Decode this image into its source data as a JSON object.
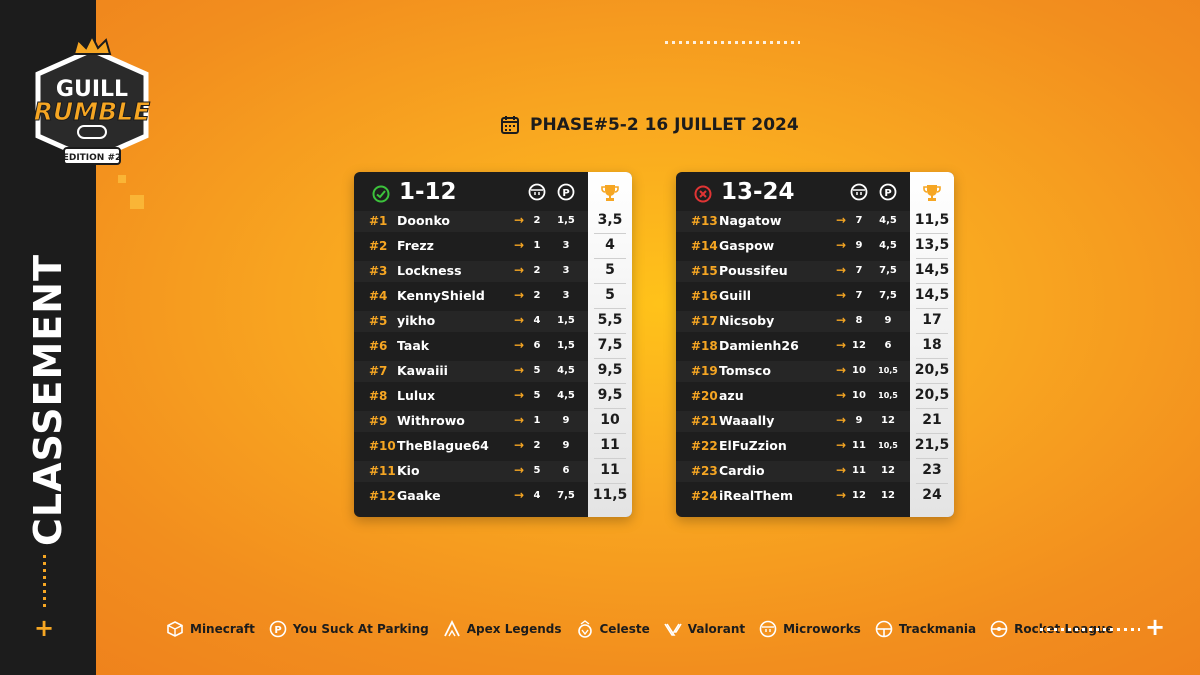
{
  "brand": {
    "line1": "GUILL",
    "line2": "RUMBLE",
    "edition": "EDITION #2"
  },
  "sidebar": {
    "title": "CLASSEMENT"
  },
  "header": {
    "phase": "PHASE#5-2 16 JUILLET 2024"
  },
  "colors": {
    "accent": "#f6a623",
    "dark": "#1c1c1c",
    "qualified": "#3cc23c",
    "eliminated": "#e03434"
  },
  "tables": [
    {
      "range": "1-12",
      "status_icon": "check-circle-icon",
      "rows": [
        {
          "rank": "#1",
          "name": "Doonko",
          "v1": "2",
          "v2": "1,5",
          "score": "3,5"
        },
        {
          "rank": "#2",
          "name": "Frezz",
          "v1": "1",
          "v2": "3",
          "score": "4"
        },
        {
          "rank": "#3",
          "name": "Lockness",
          "v1": "2",
          "v2": "3",
          "score": "5"
        },
        {
          "rank": "#4",
          "name": "KennyShield",
          "v1": "2",
          "v2": "3",
          "score": "5"
        },
        {
          "rank": "#5",
          "name": "yikho",
          "v1": "4",
          "v2": "1,5",
          "score": "5,5"
        },
        {
          "rank": "#6",
          "name": "Taak",
          "v1": "6",
          "v2": "1,5",
          "score": "7,5"
        },
        {
          "rank": "#7",
          "name": "Kawaiii",
          "v1": "5",
          "v2": "4,5",
          "score": "9,5"
        },
        {
          "rank": "#8",
          "name": "Lulux",
          "v1": "5",
          "v2": "4,5",
          "score": "9,5"
        },
        {
          "rank": "#9",
          "name": "Withrowo",
          "v1": "1",
          "v2": "9",
          "score": "10"
        },
        {
          "rank": "#10",
          "name": "TheBlague64",
          "v1": "2",
          "v2": "9",
          "score": "11"
        },
        {
          "rank": "#11",
          "name": "Kio",
          "v1": "5",
          "v2": "6",
          "score": "11"
        },
        {
          "rank": "#12",
          "name": "Gaake",
          "v1": "4",
          "v2": "7,5",
          "score": "11,5"
        }
      ]
    },
    {
      "range": "13-24",
      "status_icon": "cross-circle-icon",
      "rows": [
        {
          "rank": "#13",
          "name": "Nagatow",
          "v1": "7",
          "v2": "4,5",
          "score": "11,5"
        },
        {
          "rank": "#14",
          "name": "Gaspow",
          "v1": "9",
          "v2": "4,5",
          "score": "13,5"
        },
        {
          "rank": "#15",
          "name": "Poussifeu",
          "v1": "7",
          "v2": "7,5",
          "score": "14,5"
        },
        {
          "rank": "#16",
          "name": "Guill",
          "v1": "7",
          "v2": "7,5",
          "score": "14,5"
        },
        {
          "rank": "#17",
          "name": "Nicsoby",
          "v1": "8",
          "v2": "9",
          "score": "17"
        },
        {
          "rank": "#18",
          "name": "Damienh26",
          "v1": "12",
          "v2": "6",
          "score": "18"
        },
        {
          "rank": "#19",
          "name": "Tomsco",
          "v1": "10",
          "v2": "10,5",
          "score": "20,5"
        },
        {
          "rank": "#20",
          "name": "azu",
          "v1": "10",
          "v2": "10,5",
          "score": "20,5"
        },
        {
          "rank": "#21",
          "name": "Waaally",
          "v1": "9",
          "v2": "12",
          "score": "21"
        },
        {
          "rank": "#22",
          "name": "ElFuZzion",
          "v1": "11",
          "v2": "10,5",
          "score": "21,5"
        },
        {
          "rank": "#23",
          "name": "Cardio",
          "v1": "11",
          "v2": "12",
          "score": "23"
        },
        {
          "rank": "#24",
          "name": "iRealThem",
          "v1": "12",
          "v2": "12",
          "score": "24"
        }
      ]
    }
  ],
  "games": [
    {
      "label": "Minecraft",
      "icon": "minecraft-icon"
    },
    {
      "label": "You Suck At Parking",
      "icon": "parking-icon"
    },
    {
      "label": "Apex Legends",
      "icon": "apex-icon"
    },
    {
      "label": "Celeste",
      "icon": "celeste-icon"
    },
    {
      "label": "Valorant",
      "icon": "valorant-icon"
    },
    {
      "label": "Microworks",
      "icon": "microworks-icon"
    },
    {
      "label": "Trackmania",
      "icon": "trackmania-icon"
    },
    {
      "label": "Rocket League",
      "icon": "rocket-league-icon"
    }
  ]
}
